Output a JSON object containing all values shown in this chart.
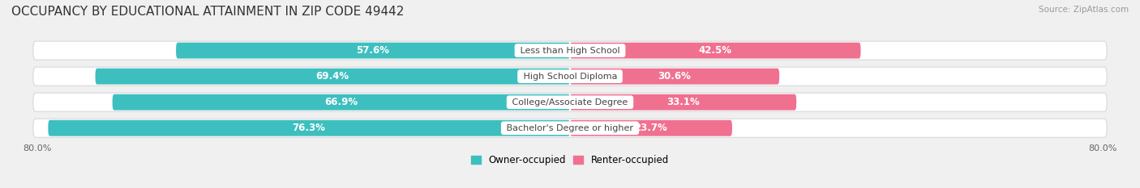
{
  "title": "OCCUPANCY BY EDUCATIONAL ATTAINMENT IN ZIP CODE 49442",
  "source": "Source: ZipAtlas.com",
  "categories": [
    "Less than High School",
    "High School Diploma",
    "College/Associate Degree",
    "Bachelor's Degree or higher"
  ],
  "owner_values": [
    57.6,
    69.4,
    66.9,
    76.3
  ],
  "renter_values": [
    42.5,
    30.6,
    33.1,
    23.7
  ],
  "owner_color": "#3DBFBF",
  "renter_color": "#F07090",
  "owner_label": "Owner-occupied",
  "renter_label": "Renter-occupied",
  "xlim_left": -80.0,
  "xlim_right": 80.0,
  "x_left_label": "80.0%",
  "x_right_label": "80.0%",
  "bar_height": 0.62,
  "background_color": "#f0f0f0",
  "row_bg_color": "#ffffff",
  "row_border_color": "#d8d8d8",
  "title_fontsize": 11,
  "label_fontsize": 8.5,
  "value_fontsize": 8.5,
  "tick_fontsize": 8,
  "source_fontsize": 7.5,
  "cat_fontsize": 8
}
